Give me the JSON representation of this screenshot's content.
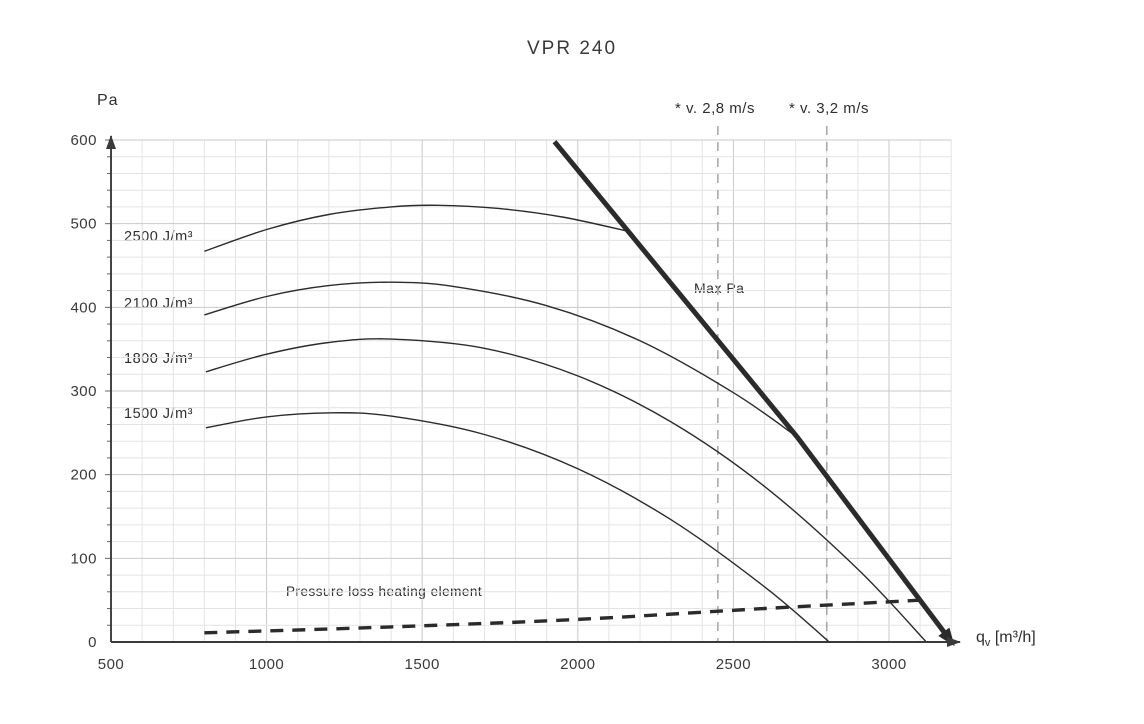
{
  "chart_data": {
    "type": "line",
    "title": "VPR 240",
    "ylabel": "Pa",
    "xlabel_parts": {
      "base": "q",
      "sub": "v",
      "rest": " [m³/h]"
    },
    "x_ticks": [
      500,
      1000,
      1500,
      2000,
      2500,
      3000
    ],
    "y_ticks": [
      0,
      100,
      200,
      300,
      400,
      500,
      600
    ],
    "xlim": [
      500,
      3200
    ],
    "ylim": [
      0,
      600
    ],
    "grid": {
      "minor_x_step": 100,
      "minor_y_step": 20,
      "major_x_step": 500,
      "major_y_step": 100,
      "visible": true
    },
    "series": [
      {
        "name": "2500 J/m3",
        "label": "2500 J/m³",
        "points": [
          [
            800,
            467
          ],
          [
            1000,
            493
          ],
          [
            1200,
            511
          ],
          [
            1400,
            520
          ],
          [
            1550,
            522
          ],
          [
            1750,
            518
          ],
          [
            1950,
            508
          ],
          [
            2160,
            491
          ]
        ]
      },
      {
        "name": "2100 J/m3",
        "label": "2100 J/m³",
        "points": [
          [
            800,
            391
          ],
          [
            1000,
            413
          ],
          [
            1200,
            426
          ],
          [
            1400,
            430
          ],
          [
            1600,
            425
          ],
          [
            1900,
            402
          ],
          [
            2200,
            360
          ],
          [
            2500,
            298
          ],
          [
            2705,
            245
          ]
        ]
      },
      {
        "name": "1800 J/m3",
        "label": "1800 J/m³",
        "points": [
          [
            805,
            323
          ],
          [
            1000,
            344
          ],
          [
            1200,
            358
          ],
          [
            1400,
            362
          ],
          [
            1700,
            351
          ],
          [
            2000,
            318
          ],
          [
            2300,
            263
          ],
          [
            2600,
            186
          ],
          [
            2900,
            87
          ],
          [
            3120,
            0
          ]
        ]
      },
      {
        "name": "1500 J/m3",
        "label": "1500 J/m³",
        "points": [
          [
            805,
            256
          ],
          [
            1000,
            269
          ],
          [
            1210,
            274
          ],
          [
            1400,
            270
          ],
          [
            1700,
            248
          ],
          [
            2000,
            207
          ],
          [
            2300,
            146
          ],
          [
            2600,
            66
          ],
          [
            2808,
            0
          ]
        ]
      }
    ],
    "max_pa_line": {
      "label": "Max Pa",
      "points": [
        [
          1925,
          598
        ],
        [
          2705,
          245
        ],
        [
          3205,
          -2
        ]
      ]
    },
    "pressure_loss": {
      "label": "Pressure loss heating element",
      "points": [
        [
          800,
          11
        ],
        [
          1400,
          18
        ],
        [
          2000,
          27
        ],
        [
          2600,
          40
        ],
        [
          3100,
          50
        ]
      ]
    },
    "velocity_lines": [
      {
        "label": "* v. 2,8 m/s",
        "q": 2450
      },
      {
        "label": "* v. 3,2 m/s",
        "q": 2800
      }
    ]
  },
  "colors": {
    "ink": "#2b2b2b",
    "axis": "#3a3a3a",
    "grid_minor": "#e3e3e3",
    "grid_major": "#c9c9c9",
    "dashed_guide": "#a9a9a9",
    "text": "#3a3a3a"
  }
}
